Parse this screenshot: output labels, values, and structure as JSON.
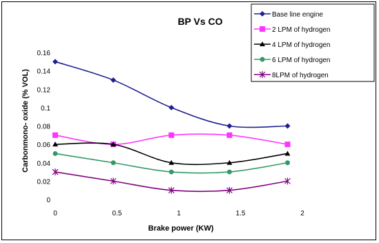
{
  "chart_data": {
    "type": "line",
    "title": "BP Vs CO",
    "xlabel": "Brake power (KW)",
    "ylabel": "Carbonmono- oxide (% VOL)",
    "xlim": [
      0,
      2
    ],
    "ylim": [
      0,
      0.16
    ],
    "x_ticks": [
      "0",
      "0.5",
      "1",
      "1.5",
      "2"
    ],
    "y_ticks": [
      "0",
      "0.02",
      "0.04",
      "0.06",
      "0.08",
      "0.1",
      "0.12",
      "0.14",
      "0.16"
    ],
    "x": [
      0,
      0.47,
      0.94,
      1.41,
      1.88
    ],
    "grid": false,
    "legend_placement": "top-right",
    "series": [
      {
        "name": "Base line engine",
        "values": [
          0.15,
          0.13,
          0.1,
          0.08,
          0.08
        ],
        "color": "#1f1f8f",
        "marker": "diamond"
      },
      {
        "name": "2 LPM of hydrogen",
        "values": [
          0.07,
          0.06,
          0.07,
          0.07,
          0.06
        ],
        "color": "#ff33ff",
        "marker": "square"
      },
      {
        "name": "4 LPM of hydrogen",
        "values": [
          0.06,
          0.06,
          0.04,
          0.04,
          0.05
        ],
        "color": "#000000",
        "marker": "triangle"
      },
      {
        "name": "6 LPM of hydrogen",
        "values": [
          0.05,
          0.04,
          0.03,
          0.03,
          0.04
        ],
        "color": "#339966",
        "marker": "circle"
      },
      {
        "name": "8LPM of hydrogen",
        "values": [
          0.03,
          0.02,
          0.01,
          0.01,
          0.02
        ],
        "color": "#800080",
        "marker": "asterisk"
      }
    ]
  }
}
